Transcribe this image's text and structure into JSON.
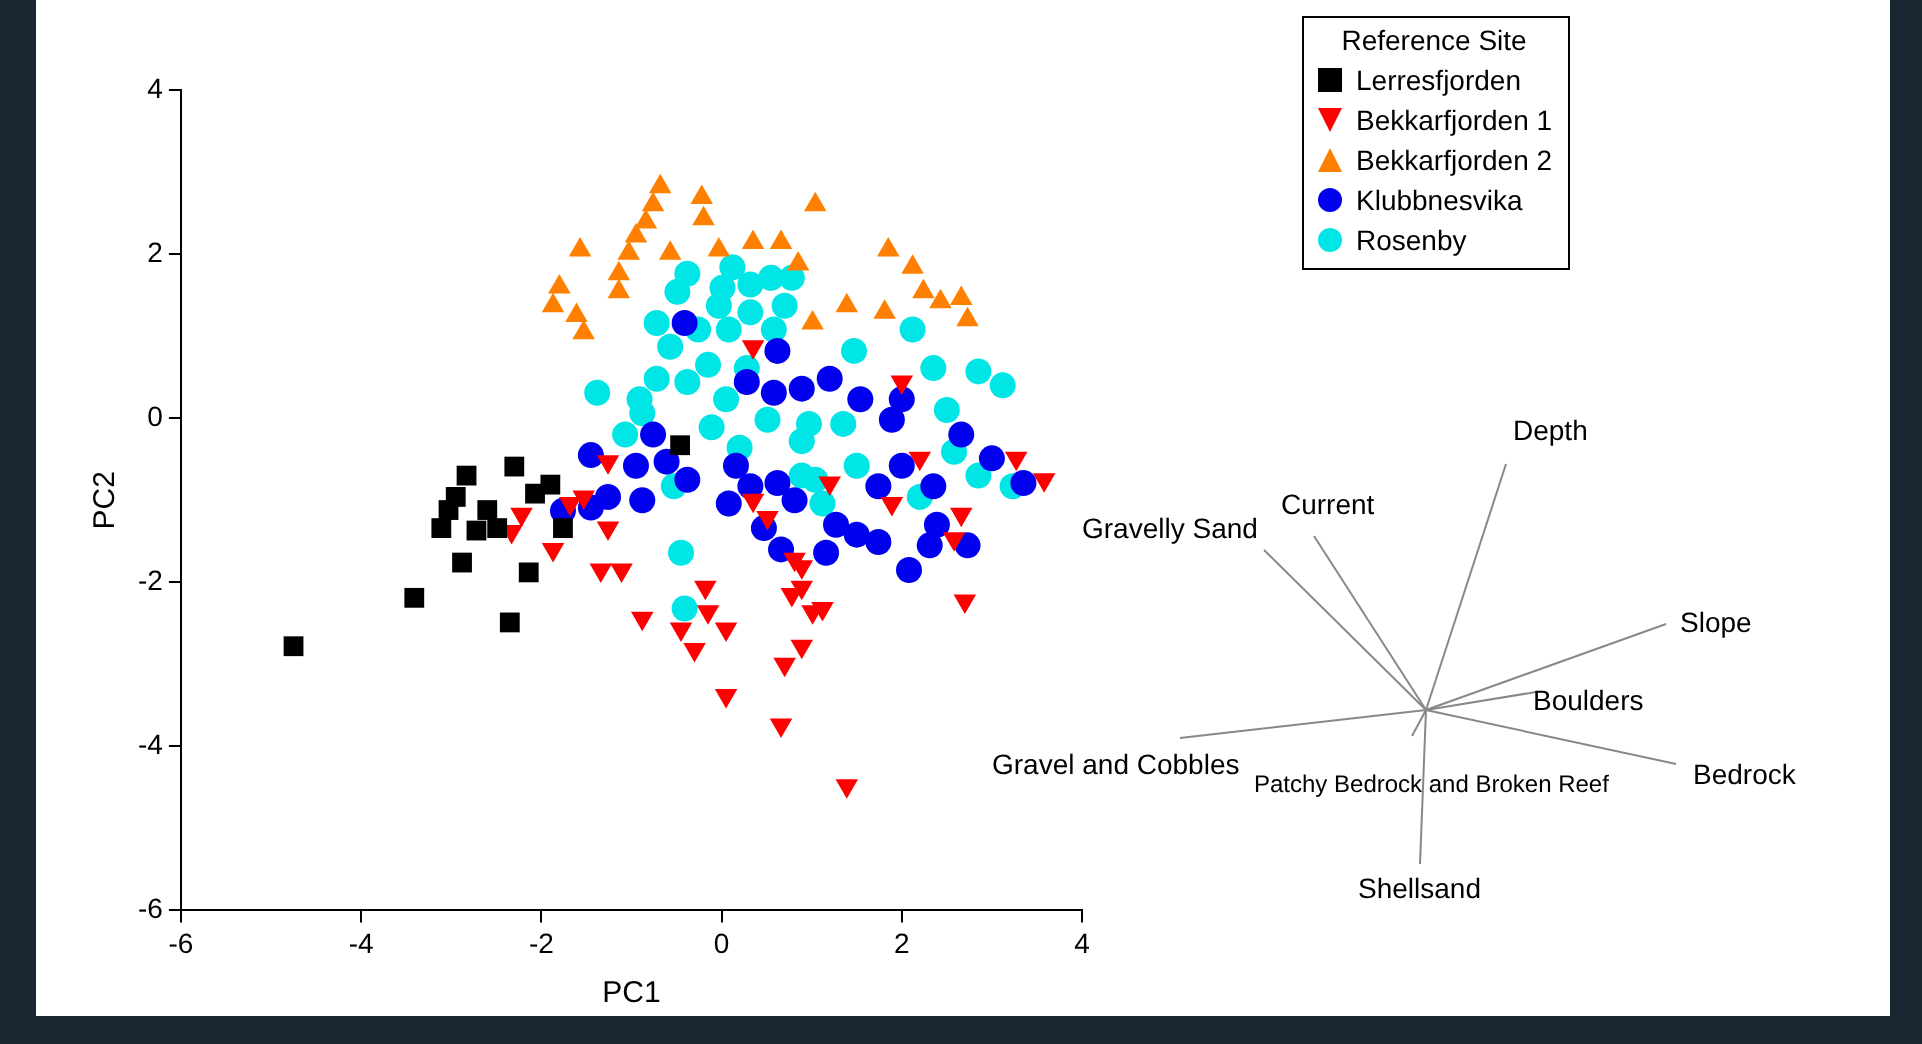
{
  "chart_data": {
    "type": "scatter",
    "xlabel": "PC1",
    "ylabel": "PC2",
    "legend_title": "Reference Site",
    "legend": "top right",
    "grid": false,
    "xlim": [
      -6,
      4
    ],
    "xticks": [
      -6,
      -4,
      -2,
      0,
      2,
      4
    ],
    "ylim": [
      -6,
      4
    ],
    "yticks": [
      -6,
      -4,
      -2,
      0,
      2,
      4
    ],
    "annotations": [
      "Depth",
      "Current",
      "Gravelly Sand",
      "Slope",
      "Boulders",
      "Gravel and Cobbles",
      "Bedrock",
      "Patchy Bedrock and Broken Reef",
      "Shellsand"
    ],
    "series": [
      {
        "name": "Lerresfjorden",
        "color": "#000000",
        "marker": "square",
        "x": [
          -4.75,
          -3.41,
          -2.35,
          -2.14,
          -2.3,
          -1.9,
          -2.83,
          -2.95,
          -3.03,
          -3.11,
          -2.88,
          -2.6,
          -2.49,
          -2.72,
          -1.76,
          -2.07,
          -0.46
        ],
        "values": [
          -2.78,
          -2.19,
          -2.49,
          -1.88,
          -0.59,
          -0.81,
          -0.7,
          -0.96,
          -1.12,
          -1.34,
          -1.76,
          -1.12,
          -1.34,
          -1.37,
          -1.34,
          -0.92,
          -0.33
        ]
      },
      {
        "name": "Bekkarfjorden 1",
        "color": "#ff0000",
        "marker": "triangle-down",
        "x": [
          -1.34,
          -0.88,
          -0.18,
          -0.15,
          -0.45,
          -0.3,
          0.05,
          0.05,
          0.78,
          1.01,
          0.89,
          0.7,
          0.66,
          1.39,
          0.89,
          -1.26,
          -1.68,
          -1.26,
          -1.87,
          -1.11,
          0.35,
          0.51,
          0.89,
          1.12,
          2.0,
          2.2,
          3.27,
          3.58,
          1.89,
          2.66,
          2.58,
          1.2,
          0.81,
          2.7,
          -2.33,
          -1.53,
          -2.22,
          0.35
        ],
        "values": [
          -1.85,
          -2.44,
          -2.06,
          -2.36,
          -2.57,
          -2.82,
          -2.57,
          -3.38,
          -2.15,
          -2.36,
          -2.78,
          -3.0,
          -3.74,
          -4.48,
          -1.81,
          -0.53,
          -1.04,
          -1.34,
          -1.6,
          -1.85,
          -1.0,
          -1.21,
          -2.06,
          -2.32,
          0.44,
          -0.49,
          -0.49,
          -0.75,
          -1.04,
          -1.17,
          -1.47,
          -0.79,
          -1.72,
          -2.23,
          -1.38,
          -0.96,
          -1.17,
          0.87
        ]
      },
      {
        "name": "Bekkarfjorden 2",
        "color": "#ff8000",
        "marker": "triangle",
        "x": [
          -0.68,
          -0.76,
          -0.84,
          -0.95,
          -1.03,
          -1.14,
          -1.14,
          -0.22,
          -0.2,
          -0.57,
          -1.57,
          -1.8,
          -1.87,
          -1.61,
          -1.53,
          -0.03,
          0.35,
          0.66,
          0.85,
          1.04,
          1.85,
          2.12,
          2.24,
          2.43,
          2.66,
          2.73,
          1.81,
          1.39,
          1.01
        ],
        "values": [
          2.82,
          2.6,
          2.39,
          2.22,
          2.01,
          1.76,
          1.54,
          2.69,
          2.43,
          2.01,
          2.05,
          1.6,
          1.37,
          1.25,
          1.04,
          2.05,
          2.14,
          2.14,
          1.88,
          2.6,
          2.05,
          1.84,
          1.54,
          1.42,
          1.46,
          1.2,
          1.29,
          1.37,
          1.16
        ]
      },
      {
        "name": "Klubbnesvika",
        "color": "#0000ee",
        "marker": "circle",
        "x": [
          -1.45,
          -1.26,
          -1.45,
          -1.76,
          -0.88,
          -0.95,
          -0.76,
          -0.61,
          -0.38,
          0.16,
          0.08,
          0.32,
          0.47,
          0.66,
          0.62,
          0.81,
          0.89,
          0.28,
          1.2,
          1.54,
          2.0,
          1.74,
          2.35,
          2.39,
          2.73,
          2.31,
          2.08,
          1.74,
          1.5,
          1.27,
          1.16,
          3.0,
          3.35,
          2.66,
          1.89,
          -0.41,
          0.62,
          0.58,
          2.0
        ],
        "values": [
          -0.45,
          -0.96,
          -1.09,
          -1.13,
          -1.0,
          -0.58,
          -0.2,
          -0.53,
          -0.75,
          -0.58,
          -1.04,
          -0.83,
          -1.34,
          -1.6,
          -0.79,
          -1.0,
          0.36,
          0.44,
          0.48,
          0.23,
          -0.58,
          -0.83,
          -0.83,
          -1.3,
          -1.55,
          -1.55,
          -1.85,
          -1.51,
          -1.42,
          -1.3,
          -1.64,
          -0.49,
          -0.79,
          -0.2,
          -0.02,
          1.16,
          0.82,
          0.31,
          0.23
        ]
      },
      {
        "name": "Rosenby",
        "color": "#00e5e5",
        "marker": "circle",
        "x": [
          -0.38,
          -0.49,
          0.12,
          0.01,
          0.32,
          0.55,
          0.78,
          -0.03,
          0.32,
          0.7,
          -0.72,
          -0.26,
          0.08,
          0.58,
          -0.57,
          -0.15,
          0.28,
          -0.72,
          -0.38,
          -1.38,
          -0.91,
          0.05,
          -0.88,
          -1.07,
          -0.53,
          -0.45,
          -0.41,
          -0.11,
          0.2,
          0.51,
          0.89,
          1.04,
          2.35,
          2.5,
          1.35,
          0.97,
          1.5,
          2.2,
          2.58,
          2.85,
          3.23,
          1.12,
          0.89,
          2.12,
          1.47,
          2.85,
          3.12
        ],
        "values": [
          1.76,
          1.54,
          1.84,
          1.59,
          1.63,
          1.71,
          1.71,
          1.37,
          1.29,
          1.37,
          1.16,
          1.08,
          1.08,
          1.08,
          0.87,
          0.65,
          0.61,
          0.48,
          0.44,
          0.31,
          0.23,
          0.23,
          0.06,
          -0.2,
          -0.83,
          -1.64,
          -2.32,
          -0.11,
          -0.36,
          -0.02,
          -0.28,
          -0.75,
          0.61,
          0.1,
          -0.07,
          -0.07,
          -0.58,
          -0.96,
          -0.41,
          -0.7,
          -0.83,
          -1.04,
          -0.7,
          1.08,
          0.82,
          0.57,
          0.4
        ]
      }
    ]
  }
}
